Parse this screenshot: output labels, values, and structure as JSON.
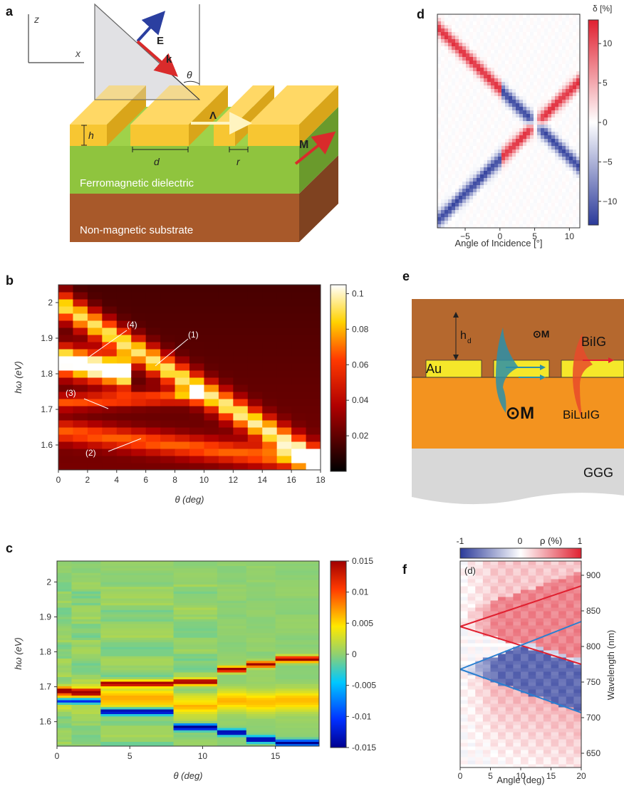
{
  "panels": {
    "a": {
      "label": "a",
      "axis_x": "x",
      "axis_z": "z",
      "field_E": "E",
      "wavevector_k": "k",
      "angle": "θ",
      "period": "Λ",
      "height": "h",
      "width_d": "d",
      "gap_r": "r",
      "magnetization": "M",
      "layer1": "Ferromagnetic dielectric",
      "layer2": "Non-magnetic substrate",
      "colors": {
        "gold": "#f7c632",
        "green": "#8fc43e",
        "brown": "#b05f2d"
      }
    },
    "b": {
      "label": "b",
      "annotations": [
        "(1)",
        "(2)",
        "(3)",
        "(4)"
      ],
      "colorbar_ticks": [
        "0.1",
        "0.08",
        "0.06",
        "0.04",
        "0.02"
      ]
    },
    "c": {
      "label": "c",
      "colorbar_ticks": [
        "0.015",
        "0.01",
        "0.005",
        "0",
        "-0.005",
        "-0.01",
        "-0.015"
      ]
    },
    "d": {
      "label": "d",
      "colorbar_title": "δ [%]",
      "colorbar_ticks": [
        "10",
        "5",
        "0",
        "−5",
        "−10"
      ]
    },
    "e": {
      "label": "e",
      "h_label": "h",
      "h_sub": "d",
      "au": "Au",
      "bilg": "BiIG",
      "bilulg": "BiLuIG",
      "ggg": "GGG",
      "m_small": "⊙M",
      "m_big": "⊙M"
    },
    "f": {
      "label": "f",
      "inset": "(d)",
      "colorbar_title": "ρ (%)",
      "colorbar_ticks": [
        "-1",
        "0",
        "1"
      ]
    }
  },
  "chart_data": [
    {
      "panel": "b",
      "type": "heatmap",
      "xlabel": "θ (deg)",
      "ylabel": "hω (eV)",
      "xlim": [
        0,
        18
      ],
      "ylim": [
        1.53,
        2.05
      ],
      "x_ticks": [
        0,
        2,
        4,
        6,
        8,
        10,
        12,
        14,
        16,
        18
      ],
      "y_ticks": [
        1.6,
        1.7,
        1.8,
        1.9,
        2.0
      ],
      "y_tick_labels": [
        "1.6",
        "1.7",
        "1.8",
        "1.9",
        "2"
      ],
      "colorbar_range": [
        0,
        0.105
      ],
      "colormap": "hot",
      "features": [
        {
          "name": "(1)",
          "x": [
            0,
            18
          ],
          "y": [
            2.0,
            1.55
          ],
          "width": 0.04
        },
        {
          "name": "(2)",
          "x": [
            0,
            18
          ],
          "y": [
            1.64,
            1.55
          ],
          "width": 0.03
        },
        {
          "name": "(3)",
          "x": [
            0,
            10
          ],
          "y": [
            1.72,
            1.74
          ],
          "width": 0.02
        },
        {
          "name": "(4)",
          "x": [
            0,
            5
          ],
          "y": [
            1.84,
            1.8
          ],
          "width": 0.04
        }
      ]
    },
    {
      "panel": "c",
      "type": "heatmap",
      "xlabel": "θ (deg)",
      "ylabel": "hω (eV)",
      "xlim": [
        0,
        18
      ],
      "ylim": [
        1.53,
        2.06
      ],
      "x_ticks": [
        0,
        5,
        10,
        15
      ],
      "y_ticks": [
        1.6,
        1.7,
        1.8,
        1.9,
        2.0
      ],
      "y_tick_labels": [
        "1.6",
        "1.7",
        "1.8",
        "1.9",
        "2"
      ],
      "colorbar_range": [
        -0.015,
        0.015
      ],
      "colormap": "jet",
      "columns": [
        {
          "x0": 0,
          "x1": 1,
          "pos": 1.69,
          "neg": 1.66
        },
        {
          "x0": 1,
          "x1": 3,
          "pos": 1.685,
          "neg": 1.66
        },
        {
          "x0": 3,
          "x1": 8,
          "pos": 1.71,
          "neg": 1.63
        },
        {
          "x0": 8,
          "x1": 11,
          "pos": 1.715,
          "neg": 1.585
        },
        {
          "x0": 11,
          "x1": 13,
          "pos": 1.75,
          "neg": 1.57
        },
        {
          "x0": 13,
          "x1": 15,
          "pos": 1.765,
          "neg": 1.55
        },
        {
          "x0": 15,
          "x1": 18,
          "pos": 1.78,
          "neg": 1.54
        }
      ]
    },
    {
      "panel": "d",
      "type": "heatmap",
      "xlabel": "Angle of Incidence [°]",
      "xlim": [
        -9,
        11.5
      ],
      "x_ticks": [
        -5,
        0,
        5,
        10
      ],
      "x_tick_labels": [
        "−5",
        "0",
        "5",
        "10"
      ],
      "colorbar_range": [
        -13,
        13
      ],
      "colormap": "bwr"
    },
    {
      "panel": "f",
      "type": "heatmap",
      "xlabel": "Angle (deg)",
      "ylabel": "Wavelength (nm)",
      "xlim": [
        0,
        20
      ],
      "ylim": [
        630,
        920
      ],
      "x_ticks": [
        0,
        5,
        10,
        15,
        20
      ],
      "y_ticks": [
        650,
        700,
        750,
        800,
        850,
        900
      ],
      "colorbar_range": [
        -1,
        1
      ],
      "colormap": "bwr",
      "lines": [
        {
          "color": "#e02030",
          "x": [
            0,
            20
          ],
          "y": [
            828,
            885
          ]
        },
        {
          "color": "#e02030",
          "x": [
            0,
            20
          ],
          "y": [
            828,
            775
          ]
        },
        {
          "color": "#2a7fd0",
          "x": [
            0,
            20
          ],
          "y": [
            768,
            835
          ]
        },
        {
          "color": "#2a7fd0",
          "x": [
            0,
            20
          ],
          "y": [
            768,
            707
          ]
        }
      ]
    }
  ]
}
